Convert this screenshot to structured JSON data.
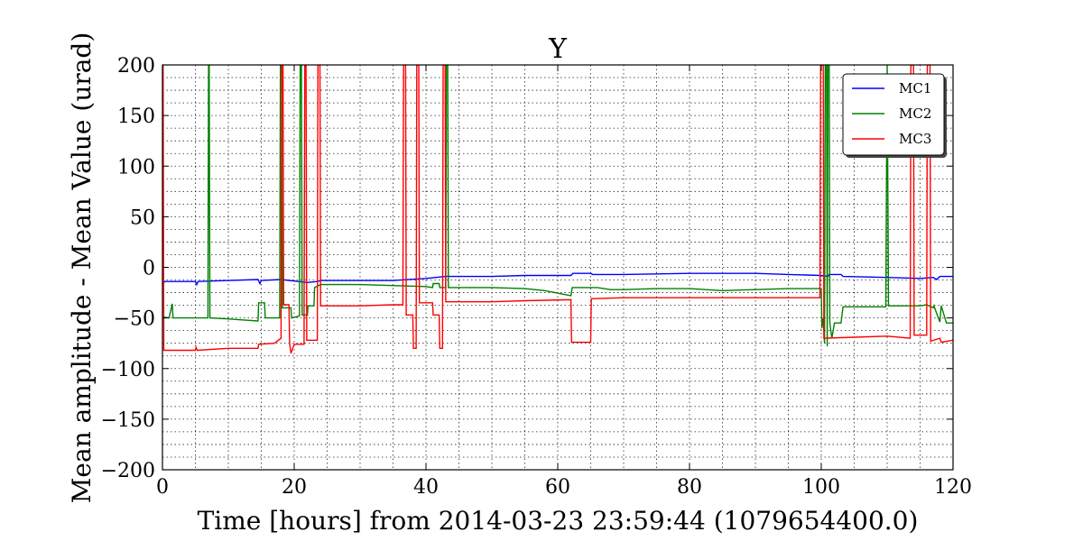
{
  "chart_data": {
    "type": "line",
    "title": "Y",
    "xlabel": "Time [hours] from 2014-03-23 23:59:44 (1079654400.0)",
    "ylabel": "Mean amplitude - Mean Value (urad)",
    "xlim": [
      0,
      120
    ],
    "ylim": [
      -200,
      200
    ],
    "xticks": [
      0,
      20,
      40,
      60,
      80,
      100,
      120
    ],
    "xtick_labels": [
      "0",
      "20",
      "40",
      "60",
      "80",
      "100",
      "120"
    ],
    "yticks": [
      -200,
      -150,
      -100,
      -50,
      0,
      50,
      100,
      150,
      200
    ],
    "ytick_labels": [
      "−200",
      "−150",
      "−100",
      "−50",
      "0",
      "50",
      "100",
      "150",
      "200"
    ],
    "grid": true,
    "legend_position": "top-right",
    "series": [
      {
        "name": "MC1",
        "color": "#0000ff",
        "points": [
          [
            0,
            -18
          ],
          [
            0.3,
            -14
          ],
          [
            5,
            -14
          ],
          [
            5.2,
            -17
          ],
          [
            5.4,
            -14
          ],
          [
            10,
            -13
          ],
          [
            14.5,
            -12
          ],
          [
            14.8,
            -16
          ],
          [
            15,
            -13
          ],
          [
            18,
            -12
          ],
          [
            22,
            -15
          ],
          [
            23.5,
            -14
          ],
          [
            24,
            -13
          ],
          [
            30,
            -13
          ],
          [
            35,
            -13
          ],
          [
            40,
            -11
          ],
          [
            43,
            -9
          ],
          [
            50,
            -9
          ],
          [
            55,
            -8
          ],
          [
            62,
            -8
          ],
          [
            62.3,
            -6
          ],
          [
            65,
            -6
          ],
          [
            65.3,
            -7
          ],
          [
            70,
            -7
          ],
          [
            80,
            -6
          ],
          [
            90,
            -6
          ],
          [
            95,
            -7
          ],
          [
            100,
            -8
          ],
          [
            101,
            -9
          ],
          [
            101.2,
            -7
          ],
          [
            103,
            -7
          ],
          [
            103.3,
            -9
          ],
          [
            110,
            -10
          ],
          [
            115,
            -11
          ],
          [
            117,
            -10
          ],
          [
            117.5,
            -12
          ],
          [
            118,
            -9
          ],
          [
            120,
            -9
          ]
        ]
      },
      {
        "name": "MC2",
        "color": "#008000",
        "points": [
          [
            0,
            -49
          ],
          [
            1,
            -50
          ],
          [
            1.5,
            -36
          ],
          [
            1.6,
            -50
          ],
          [
            6.9,
            -50
          ],
          [
            7,
            200
          ],
          [
            7.1,
            200
          ],
          [
            7.2,
            -50
          ],
          [
            10,
            -51
          ],
          [
            14.5,
            -53
          ],
          [
            14.6,
            -35
          ],
          [
            15.5,
            -35
          ],
          [
            15.6,
            -50
          ],
          [
            17.8,
            -50
          ],
          [
            17.9,
            200
          ],
          [
            18.1,
            200
          ],
          [
            18.2,
            -40
          ],
          [
            19.5,
            -40
          ],
          [
            19.6,
            -50
          ],
          [
            20.8,
            -48
          ],
          [
            20.9,
            200
          ],
          [
            21.1,
            200
          ],
          [
            21.2,
            -47
          ],
          [
            22,
            -47
          ],
          [
            22.1,
            -38
          ],
          [
            23,
            -38
          ],
          [
            23.1,
            -20
          ],
          [
            24,
            -17
          ],
          [
            30,
            -17
          ],
          [
            35,
            -18
          ],
          [
            40,
            -19
          ],
          [
            41,
            -20
          ],
          [
            41.1,
            -16
          ],
          [
            42,
            -16
          ],
          [
            42.1,
            -20
          ],
          [
            43,
            -20
          ],
          [
            43.1,
            200
          ],
          [
            43.3,
            200
          ],
          [
            43.4,
            -20
          ],
          [
            50,
            -20
          ],
          [
            55,
            -21
          ],
          [
            58,
            -23
          ],
          [
            62,
            -28
          ],
          [
            62.2,
            -20
          ],
          [
            66,
            -20
          ],
          [
            68,
            -22
          ],
          [
            70,
            -22
          ],
          [
            75,
            -21
          ],
          [
            80,
            -21
          ],
          [
            85,
            -23
          ],
          [
            90,
            -22
          ],
          [
            95,
            -21
          ],
          [
            100,
            -21
          ],
          [
            100.1,
            -60
          ],
          [
            100.3,
            -50
          ],
          [
            100.5,
            -75
          ],
          [
            100.6,
            200
          ],
          [
            100.8,
            200
          ],
          [
            100.9,
            -78
          ],
          [
            101,
            200
          ],
          [
            101.2,
            200
          ],
          [
            101.3,
            -55
          ],
          [
            101.6,
            -70
          ],
          [
            102,
            -55
          ],
          [
            103,
            -55
          ],
          [
            103.3,
            -39
          ],
          [
            109.8,
            -39
          ],
          [
            110,
            200
          ],
          [
            110.2,
            -38
          ],
          [
            115,
            -38
          ],
          [
            116,
            -37
          ],
          [
            117,
            -40
          ],
          [
            117.1,
            -38
          ],
          [
            118,
            -54
          ],
          [
            118.2,
            -38
          ],
          [
            119,
            -55
          ],
          [
            120,
            -55
          ]
        ]
      },
      {
        "name": "MC3",
        "color": "#ff0000",
        "points": [
          [
            0,
            200
          ],
          [
            0.1,
            200
          ],
          [
            0.2,
            -82
          ],
          [
            5,
            -82
          ],
          [
            5.1,
            -79
          ],
          [
            5.3,
            -82
          ],
          [
            10,
            -80
          ],
          [
            14.5,
            -80
          ],
          [
            14.6,
            -76
          ],
          [
            17,
            -75
          ],
          [
            18,
            -70
          ],
          [
            18.1,
            200
          ],
          [
            18.3,
            200
          ],
          [
            18.4,
            -37
          ],
          [
            19.2,
            -37
          ],
          [
            19.3,
            -75
          ],
          [
            19.5,
            -85
          ],
          [
            20,
            -76
          ],
          [
            21.5,
            -76
          ],
          [
            21.6,
            200
          ],
          [
            21.8,
            200
          ],
          [
            21.9,
            -72
          ],
          [
            23.5,
            -72
          ],
          [
            23.6,
            200
          ],
          [
            23.9,
            200
          ],
          [
            24,
            -38
          ],
          [
            30,
            -38
          ],
          [
            35,
            -37
          ],
          [
            36.5,
            -37
          ],
          [
            36.6,
            200
          ],
          [
            36.9,
            200
          ],
          [
            37,
            -47
          ],
          [
            38,
            -47
          ],
          [
            38.1,
            -80
          ],
          [
            38.5,
            -80
          ],
          [
            38.6,
            200
          ],
          [
            38.9,
            200
          ],
          [
            39,
            -35
          ],
          [
            41,
            -35
          ],
          [
            41.1,
            -47
          ],
          [
            42,
            -47
          ],
          [
            42.1,
            -80
          ],
          [
            42.5,
            -80
          ],
          [
            42.6,
            200
          ],
          [
            42.9,
            200
          ],
          [
            43,
            -34
          ],
          [
            50,
            -34
          ],
          [
            55,
            -33
          ],
          [
            62,
            -32
          ],
          [
            62.1,
            -74
          ],
          [
            65,
            -74
          ],
          [
            65.1,
            -31
          ],
          [
            70,
            -30
          ],
          [
            80,
            -30
          ],
          [
            90,
            -30
          ],
          [
            99.8,
            -30
          ],
          [
            99.9,
            200
          ],
          [
            100.3,
            200
          ],
          [
            100.4,
            -70
          ],
          [
            105,
            -69
          ],
          [
            110,
            -68
          ],
          [
            113.5,
            -70
          ],
          [
            113.6,
            200
          ],
          [
            114,
            200
          ],
          [
            114.1,
            -67
          ],
          [
            116,
            -67
          ],
          [
            116.1,
            200
          ],
          [
            116.5,
            200
          ],
          [
            116.6,
            -73
          ],
          [
            118,
            -70
          ],
          [
            118.2,
            -74
          ],
          [
            120,
            -72
          ]
        ]
      }
    ]
  }
}
